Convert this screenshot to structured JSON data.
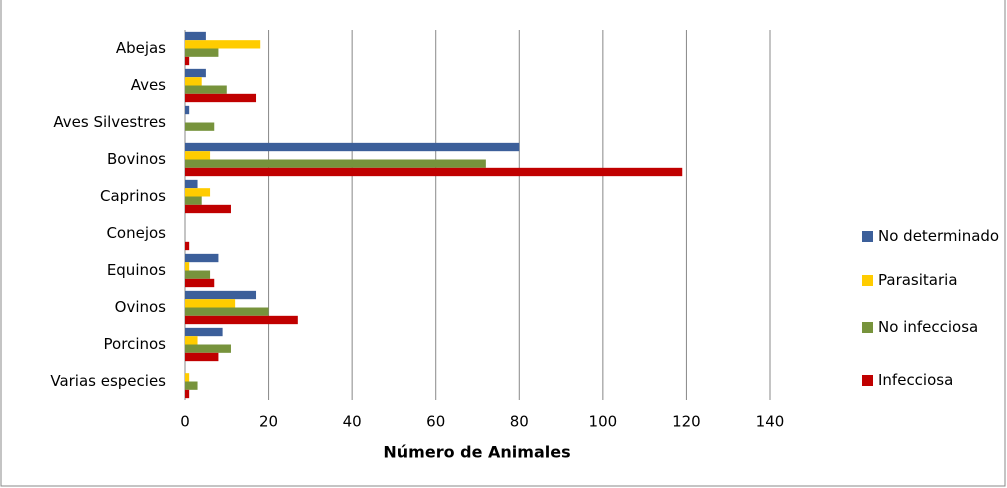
{
  "chart_data": {
    "type": "bar",
    "orientation": "horizontal",
    "x_label": "Número de Animales",
    "categories": [
      "Abejas",
      "Aves",
      "Aves Silvestres",
      "Bovinos",
      "Caprinos",
      "Conejos",
      "Equinos",
      "Ovinos",
      "Porcinos",
      "Varias especies"
    ],
    "series": [
      {
        "name": "No determinado",
        "color": "#3c5f9a",
        "values": [
          5,
          5,
          1,
          80,
          3,
          0,
          8,
          17,
          9,
          0
        ]
      },
      {
        "name": "Parasitaria",
        "color": "#ffcc00",
        "values": [
          18,
          4,
          0,
          6,
          6,
          0,
          1,
          12,
          3,
          1
        ]
      },
      {
        "name": "No infecciosa",
        "color": "#77933c",
        "values": [
          8,
          10,
          7,
          72,
          4,
          0,
          6,
          20,
          11,
          3
        ]
      },
      {
        "name": "Infecciosa",
        "color": "#c00000",
        "values": [
          1,
          17,
          0,
          119,
          11,
          1,
          7,
          27,
          8,
          1
        ]
      }
    ],
    "xlim": [
      0,
      140
    ],
    "xticks": [
      0,
      20,
      40,
      60,
      80,
      100,
      120,
      140
    ],
    "grid": true,
    "legend": "right"
  }
}
